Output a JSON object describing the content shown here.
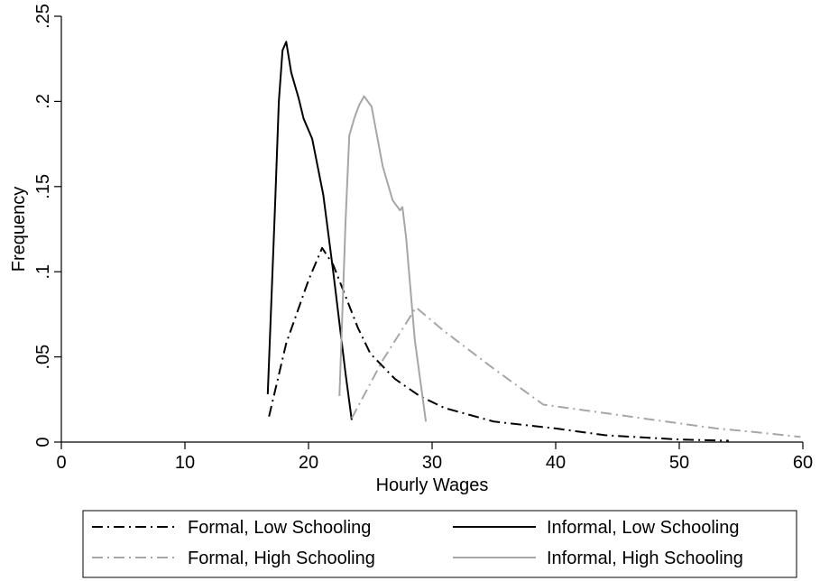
{
  "chart_data": {
    "type": "line",
    "xlabel": "Hourly Wages",
    "ylabel": "Frequency",
    "xlim": [
      0,
      60
    ],
    "ylim": [
      0,
      0.25
    ],
    "x_ticks": [
      0,
      10,
      20,
      30,
      40,
      50,
      60
    ],
    "x_tick_labels": [
      "0",
      "10",
      "20",
      "30",
      "40",
      "50",
      "60"
    ],
    "y_ticks": [
      0,
      0.05,
      0.1,
      0.15,
      0.2,
      0.25
    ],
    "y_tick_labels": [
      "0",
      ".05",
      ".1",
      ".15",
      ".2",
      ".25"
    ],
    "grid": false,
    "legend_position": "bottom",
    "series": [
      {
        "name": "Formal, Low Schooling",
        "color": "#000000",
        "dash": "dashdot",
        "x": [
          16.8,
          18.2,
          20,
          21.1,
          22,
          24,
          25,
          27,
          29,
          31,
          35,
          40,
          44,
          50,
          54
        ],
        "y": [
          0.015,
          0.058,
          0.095,
          0.114,
          0.104,
          0.067,
          0.052,
          0.037,
          0.027,
          0.02,
          0.012,
          0.008,
          0.004,
          0.0015,
          0.0008
        ]
      },
      {
        "name": "Informal, Low Schooling",
        "color": "#000000",
        "dash": "solid",
        "x": [
          16.7,
          17.3,
          17.6,
          17.9,
          18.2,
          18.6,
          19.2,
          19.6,
          20.3,
          21.2,
          22,
          23,
          23.5
        ],
        "y": [
          0.028,
          0.14,
          0.2,
          0.23,
          0.235,
          0.217,
          0.202,
          0.19,
          0.178,
          0.145,
          0.1,
          0.04,
          0.013
        ]
      },
      {
        "name": "Formal, High Schooling",
        "color": "#a6a6a6",
        "dash": "dashdot",
        "x": [
          23.5,
          26,
          28.7,
          31,
          35,
          39,
          43,
          48,
          53,
          56,
          59.8
        ],
        "y": [
          0.014,
          0.048,
          0.079,
          0.065,
          0.043,
          0.022,
          0.018,
          0.013,
          0.008,
          0.006,
          0.003
        ]
      },
      {
        "name": "Informal, High Schooling",
        "color": "#a6a6a6",
        "dash": "solid",
        "x": [
          22.5,
          23,
          23.3,
          23.7,
          24.1,
          24.5,
          25.1,
          26,
          26.8,
          27.4,
          27.6,
          27.9,
          28.6,
          29.5
        ],
        "y": [
          0.027,
          0.13,
          0.18,
          0.19,
          0.198,
          0.203,
          0.197,
          0.162,
          0.142,
          0.136,
          0.138,
          0.12,
          0.06,
          0.012
        ]
      }
    ]
  }
}
